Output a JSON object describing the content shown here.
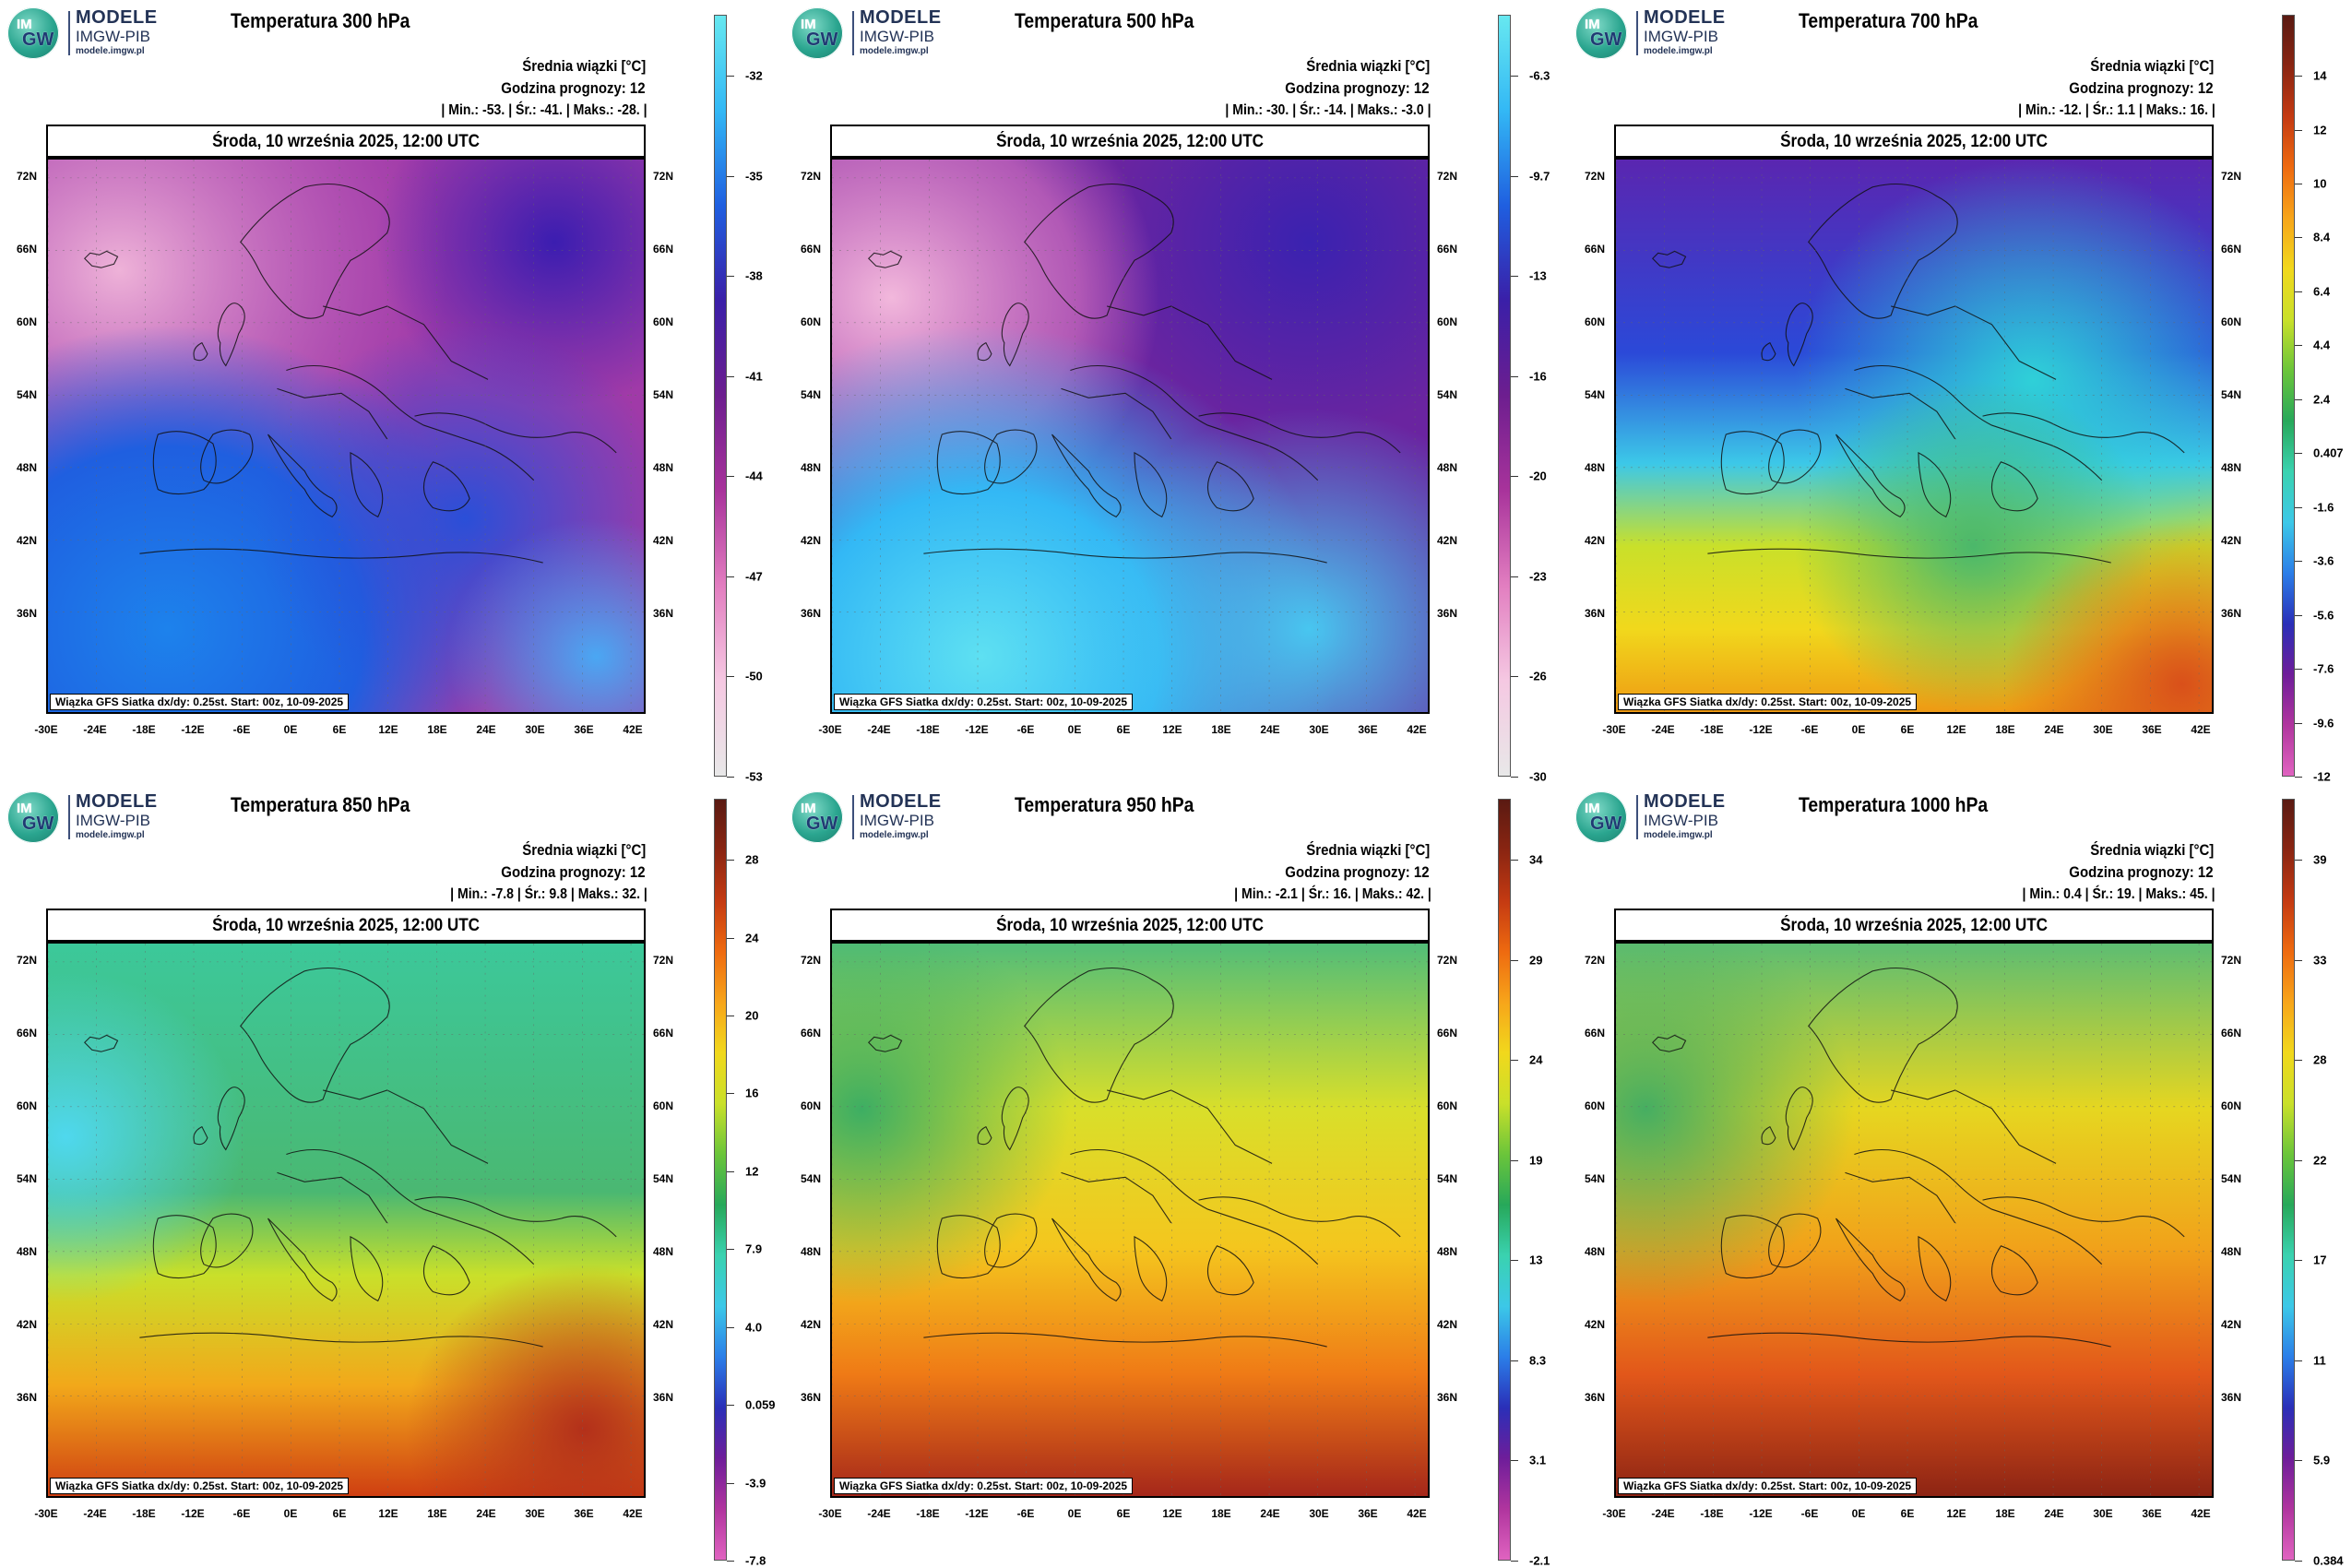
{
  "logo": {
    "im": "IM",
    "gw": "GW",
    "line1": "MODELE",
    "line2": "IMGW-PIB",
    "line3": "modele.imgw.pl"
  },
  "common": {
    "info_label": "Średnia wiązki [°C]",
    "hour": "Godzina prognozy: 12",
    "date": "Środa, 10 września 2025, 12:00 UTC",
    "footer": "Wiązka GFS Siatka dx/dy: 0.25st. Start: 00z, 10-09-2025",
    "lat_labels": [
      "72N",
      "66N",
      "60N",
      "54N",
      "48N",
      "42N",
      "36N"
    ],
    "lon_labels": [
      "-30E",
      "-24E",
      "-18E",
      "-12E",
      "-6E",
      "0E",
      "6E",
      "12E",
      "18E",
      "24E",
      "30E",
      "36E",
      "42E"
    ]
  },
  "panels": [
    {
      "title": "Temperatura 300 hPa",
      "stats": "| Min.:   -53. | Śr.:   -41. | Maks.:   -28. |",
      "cbar_ticks": [
        "-32",
        "-35",
        "-38",
        "-41",
        "-44",
        "-47",
        "-50",
        "-53"
      ],
      "cbar_type": "cold300"
    },
    {
      "title": "Temperatura 500 hPa",
      "stats": "| Min.:   -30. | Śr.:   -14. | Maks.:   -3.0 |",
      "cbar_ticks": [
        "-6.3",
        "-9.7",
        "-13",
        "-16",
        "-20",
        "-23",
        "-26",
        "-30"
      ],
      "cbar_type": "cold500"
    },
    {
      "title": "Temperatura 700 hPa",
      "stats": "| Min.:   -12. | Śr.:   1.1 | Maks.:   16. |",
      "cbar_ticks": [
        "14",
        "12",
        "10",
        "8.4",
        "6.4",
        "4.4",
        "2.4",
        "0.407",
        "-1.6",
        "-3.6",
        "-5.6",
        "-7.6",
        "-9.6",
        "-12"
      ],
      "cbar_type": "warm"
    },
    {
      "title": "Temperatura 850 hPa",
      "stats": "| Min.:   -7.8 | Śr.:   9.8 | Maks.:   32. |",
      "cbar_ticks": [
        "28",
        "24",
        "20",
        "16",
        "12",
        "7.9",
        "4.0",
        "0.059",
        "-3.9",
        "-7.8"
      ],
      "cbar_type": "warm"
    },
    {
      "title": "Temperatura 950 hPa",
      "stats": "| Min.:   -2.1 | Śr.:   16. | Maks.:   42. |",
      "cbar_ticks": [
        "34",
        "29",
        "24",
        "19",
        "13",
        "8.3",
        "3.1",
        "-2.1"
      ],
      "cbar_type": "warm"
    },
    {
      "title": "Temperatura 1000 hPa",
      "stats": "| Min.:   0.4 | Śr.:   19. | Maks.:   45. |",
      "cbar_ticks": [
        "39",
        "33",
        "28",
        "22",
        "17",
        "11",
        "5.9",
        "0.384"
      ],
      "cbar_type": "warm"
    }
  ],
  "colors": {
    "cold300": [
      "#67e8f0",
      "#33b8f5",
      "#1f5fe0",
      "#3a1fa8",
      "#6d1e8f",
      "#a8339b",
      "#e27ec0",
      "#f5c8e2",
      "#e8e8e8"
    ],
    "cold500": [
      "#67e8f0",
      "#33b8f5",
      "#1f5fe0",
      "#3a1fa8",
      "#6d1e8f",
      "#a8339b",
      "#e27ec0",
      "#f5c8e2",
      "#e8e8e8"
    ],
    "warm": [
      "#5a1a12",
      "#8a2512",
      "#c43a12",
      "#ee6a10",
      "#f7a51a",
      "#f1d81c",
      "#c9e02a",
      "#6bc53a",
      "#27a85a",
      "#3ad2b0",
      "#3cc8e8",
      "#2b7ee8",
      "#2a2fb8",
      "#6e1d9a",
      "#b0359e",
      "#e063c0"
    ]
  }
}
